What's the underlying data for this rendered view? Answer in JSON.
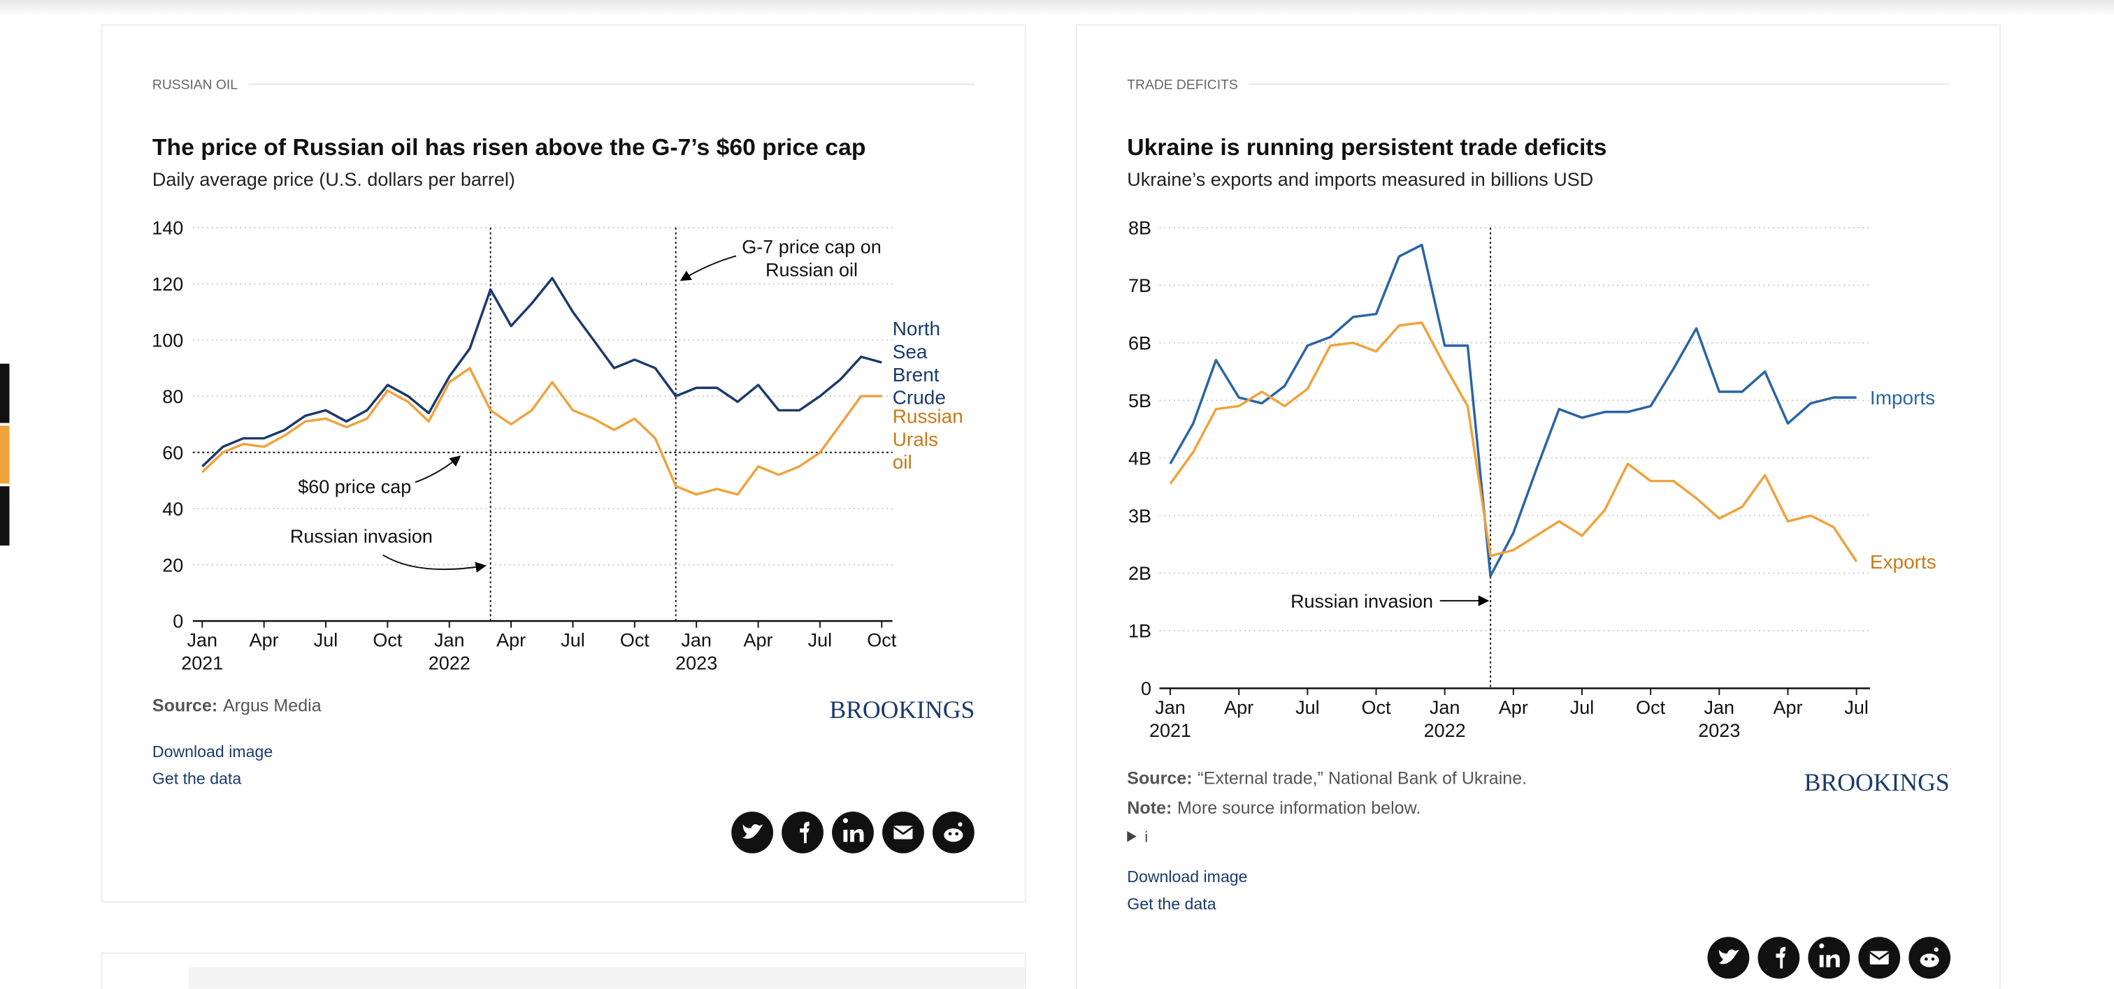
{
  "chart_data": [
    {
      "type": "line",
      "section": "RUSSIAN OIL",
      "title": "The price of Russian oil has risen above the G-7’s $60 price cap",
      "subtitle": "Daily average price (U.S. dollars per barrel)",
      "x": [
        "2021-01",
        "2021-02",
        "2021-03",
        "2021-04",
        "2021-05",
        "2021-06",
        "2021-07",
        "2021-08",
        "2021-09",
        "2021-10",
        "2021-11",
        "2021-12",
        "2022-01",
        "2022-02",
        "2022-03",
        "2022-04",
        "2022-05",
        "2022-06",
        "2022-07",
        "2022-08",
        "2022-09",
        "2022-10",
        "2022-11",
        "2022-12",
        "2023-01",
        "2023-02",
        "2023-03",
        "2023-04",
        "2023-05",
        "2023-06",
        "2023-07",
        "2023-08",
        "2023-09",
        "2023-10"
      ],
      "series": [
        {
          "name": "North Sea Brent Crude",
          "color": "#1b3a6b",
          "values": [
            55,
            62,
            65,
            65,
            68,
            73,
            75,
            71,
            75,
            84,
            80,
            74,
            87,
            97,
            118,
            105,
            113,
            122,
            110,
            100,
            90,
            93,
            90,
            80,
            83,
            83,
            78,
            84,
            75,
            75,
            80,
            86,
            94,
            92
          ]
        },
        {
          "name": "Russian Urals oil",
          "color": "#f0a23c",
          "label_color": "#c77a1a",
          "values": [
            53,
            60,
            63,
            62,
            66,
            71,
            72,
            69,
            72,
            82,
            78,
            71,
            85,
            90,
            75,
            70,
            75,
            85,
            75,
            72,
            68,
            72,
            65,
            48,
            45,
            47,
            45,
            55,
            52,
            55,
            60,
            70,
            80,
            80
          ]
        }
      ],
      "xlim": [
        "2021-01",
        "2023-10"
      ],
      "xticks": [
        {
          "value": "2021-01",
          "label": "Jan",
          "sublabel": "2021"
        },
        {
          "value": "2021-04",
          "label": "Apr"
        },
        {
          "value": "2021-07",
          "label": "Jul"
        },
        {
          "value": "2021-10",
          "label": "Oct"
        },
        {
          "value": "2022-01",
          "label": "Jan",
          "sublabel": "2022"
        },
        {
          "value": "2022-04",
          "label": "Apr"
        },
        {
          "value": "2022-07",
          "label": "Jul"
        },
        {
          "value": "2022-10",
          "label": "Oct"
        },
        {
          "value": "2023-01",
          "label": "Jan",
          "sublabel": "2023"
        },
        {
          "value": "2023-04",
          "label": "Apr"
        },
        {
          "value": "2023-07",
          "label": "Jul"
        },
        {
          "value": "2023-10",
          "label": "Oct"
        }
      ],
      "ylim": [
        0,
        140
      ],
      "yticks": [
        0,
        20,
        40,
        60,
        80,
        100,
        120,
        140
      ],
      "grid": true,
      "hline": {
        "text": "$60 price cap",
        "y": 60
      },
      "vlines": [
        {
          "text": "Russian invasion",
          "x": "2022-03"
        },
        {
          "text": "G-7 price cap on Russian oil",
          "x": "2022-12"
        }
      ],
      "source_label": "Source:",
      "source": "Argus Media"
    },
    {
      "type": "line",
      "section": "TRADE DEFICITS",
      "title": "Ukraine is running persistent trade deficits",
      "subtitle": "Ukraine’s exports and imports measured in billions USD",
      "x": [
        "2021-01",
        "2021-02",
        "2021-03",
        "2021-04",
        "2021-05",
        "2021-06",
        "2021-07",
        "2021-08",
        "2021-09",
        "2021-10",
        "2021-11",
        "2021-12",
        "2022-01",
        "2022-02",
        "2022-03",
        "2022-04",
        "2022-05",
        "2022-06",
        "2022-07",
        "2022-08",
        "2022-09",
        "2022-10",
        "2022-11",
        "2022-12",
        "2023-01",
        "2023-02",
        "2023-03",
        "2023-04",
        "2023-05",
        "2023-06",
        "2023-07"
      ],
      "series": [
        {
          "name": "Imports",
          "color": "#2a64a6",
          "values": [
            3.9,
            4.6,
            5.7,
            5.05,
            4.95,
            5.25,
            5.95,
            6.1,
            6.45,
            6.5,
            7.5,
            7.7,
            5.95,
            5.95,
            1.95,
            2.7,
            3.8,
            4.85,
            4.7,
            4.8,
            4.8,
            4.9,
            5.55,
            6.25,
            5.15,
            5.15,
            5.5,
            4.6,
            4.95,
            5.05,
            5.05
          ]
        },
        {
          "name": "Exports",
          "color": "#f0a23c",
          "label_color": "#c77a1a",
          "values": [
            3.55,
            4.1,
            4.85,
            4.9,
            5.15,
            4.9,
            5.2,
            5.95,
            6.0,
            5.85,
            6.3,
            6.35,
            5.6,
            4.9,
            2.3,
            2.4,
            2.65,
            2.9,
            2.65,
            3.1,
            3.9,
            3.6,
            3.6,
            3.3,
            2.95,
            3.15,
            3.7,
            2.9,
            3.0,
            2.8,
            2.2
          ]
        }
      ],
      "xlim": [
        "2021-01",
        "2023-07"
      ],
      "xticks": [
        {
          "value": "2021-01",
          "label": "Jan",
          "sublabel": "2021"
        },
        {
          "value": "2021-04",
          "label": "Apr"
        },
        {
          "value": "2021-07",
          "label": "Jul"
        },
        {
          "value": "2021-10",
          "label": "Oct"
        },
        {
          "value": "2022-01",
          "label": "Jan",
          "sublabel": "2022"
        },
        {
          "value": "2022-04",
          "label": "Apr"
        },
        {
          "value": "2022-07",
          "label": "Jul"
        },
        {
          "value": "2022-10",
          "label": "Oct"
        },
        {
          "value": "2023-01",
          "label": "Jan",
          "sublabel": "2023"
        },
        {
          "value": "2023-04",
          "label": "Apr"
        },
        {
          "value": "2023-07",
          "label": "Jul"
        }
      ],
      "ylim": [
        0,
        8
      ],
      "yticks": [
        0,
        {
          "value": 1,
          "label": "1B"
        },
        {
          "value": 2,
          "label": "2B"
        },
        {
          "value": 3,
          "label": "3B"
        },
        {
          "value": 4,
          "label": "4B"
        },
        {
          "value": 5,
          "label": "5B"
        },
        {
          "value": 6,
          "label": "6B"
        },
        {
          "value": 7,
          "label": "7B"
        },
        {
          "value": 8,
          "label": "8B"
        }
      ],
      "grid": true,
      "vlines": [
        {
          "text": "Russian invasion",
          "x": "2022-03"
        }
      ],
      "source_label": "Source:",
      "source": "“External trade,” National Bank of Ukraine.",
      "note_label": "Note:",
      "note": "More source information below.",
      "info": "i"
    }
  ],
  "brand": "BROOKINGS",
  "links": [
    "Download image",
    "Get the data"
  ]
}
